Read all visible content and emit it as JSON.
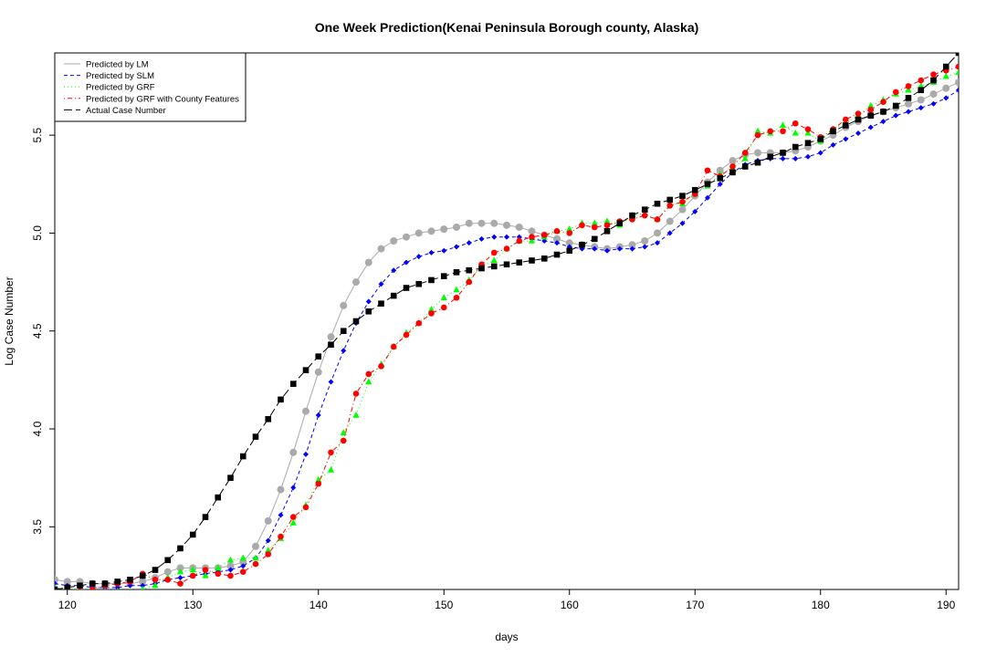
{
  "chart_data": {
    "type": "line",
    "title": "One Week Prediction(Kenai Peninsula Borough county, Alaska)",
    "xlabel": "days",
    "ylabel": "Log Case Number",
    "xlim": [
      119,
      191
    ],
    "ylim": [
      3.18,
      5.92
    ],
    "x_ticks": [
      120,
      130,
      140,
      150,
      160,
      170,
      180,
      190
    ],
    "y_ticks": [
      3.5,
      4.0,
      4.5,
      5.0,
      5.5
    ],
    "x_tick_labels": [
      "120",
      "130",
      "140",
      "150",
      "160",
      "170",
      "180",
      "190"
    ],
    "y_tick_labels": [
      "3.5",
      "4.0",
      "4.5",
      "5.0",
      "5.5"
    ],
    "legend_position": "top-left",
    "x": [
      119,
      120,
      121,
      122,
      123,
      124,
      125,
      126,
      127,
      128,
      129,
      130,
      131,
      132,
      133,
      134,
      135,
      136,
      137,
      138,
      139,
      140,
      141,
      142,
      143,
      144,
      145,
      146,
      147,
      148,
      149,
      150,
      151,
      152,
      153,
      154,
      155,
      156,
      157,
      158,
      159,
      160,
      161,
      162,
      163,
      164,
      165,
      166,
      167,
      168,
      169,
      170,
      171,
      172,
      173,
      174,
      175,
      176,
      177,
      178,
      179,
      180,
      181,
      182,
      183,
      184,
      185,
      186,
      187,
      188,
      189,
      190,
      191
    ],
    "series": [
      {
        "name": "Predicted by LM",
        "color": "#aaaaaa",
        "line_style": "solid",
        "marker": "circle",
        "values": [
          3.23,
          3.22,
          3.22,
          3.21,
          3.21,
          3.21,
          3.21,
          3.22,
          3.24,
          3.27,
          3.29,
          3.29,
          3.29,
          3.29,
          3.3,
          3.32,
          3.4,
          3.53,
          3.69,
          3.88,
          4.09,
          4.29,
          4.47,
          4.63,
          4.75,
          4.85,
          4.92,
          4.96,
          4.98,
          5.0,
          5.01,
          5.02,
          5.03,
          5.05,
          5.05,
          5.05,
          5.04,
          5.03,
          5.01,
          4.99,
          4.97,
          4.95,
          4.94,
          4.93,
          4.92,
          4.93,
          4.94,
          4.96,
          5.0,
          5.06,
          5.12,
          5.19,
          5.26,
          5.32,
          5.37,
          5.4,
          5.41,
          5.41,
          5.41,
          5.42,
          5.44,
          5.47,
          5.5,
          5.54,
          5.57,
          5.6,
          5.62,
          5.64,
          5.66,
          5.68,
          5.71,
          5.74,
          5.77
        ]
      },
      {
        "name": "Predicted by SLM",
        "color": "#0000ff",
        "line_style": "dashed",
        "marker": "diamond",
        "values": [
          3.21,
          3.2,
          3.2,
          3.19,
          3.19,
          3.19,
          3.2,
          3.2,
          3.21,
          3.23,
          3.24,
          3.25,
          3.26,
          3.27,
          3.28,
          3.3,
          3.34,
          3.43,
          3.56,
          3.7,
          3.87,
          4.07,
          4.24,
          4.4,
          4.54,
          4.65,
          4.74,
          4.81,
          4.85,
          4.88,
          4.9,
          4.91,
          4.93,
          4.95,
          4.97,
          4.98,
          4.98,
          4.98,
          4.97,
          4.96,
          4.95,
          4.93,
          4.92,
          4.92,
          4.91,
          4.92,
          4.92,
          4.93,
          4.95,
          5.0,
          5.05,
          5.11,
          5.18,
          5.25,
          5.31,
          5.35,
          5.37,
          5.38,
          5.38,
          5.38,
          5.39,
          5.41,
          5.45,
          5.48,
          5.51,
          5.54,
          5.57,
          5.6,
          5.62,
          5.64,
          5.66,
          5.69,
          5.73
        ]
      },
      {
        "name": "Predicted by GRF",
        "color": "#00ff00",
        "line_style": "dotted",
        "marker": "triangle",
        "values": [
          3.19,
          3.18,
          3.18,
          3.18,
          3.17,
          3.17,
          3.17,
          3.18,
          3.2,
          3.24,
          3.27,
          3.28,
          3.25,
          3.29,
          3.33,
          3.34,
          3.34,
          3.38,
          3.44,
          3.52,
          3.61,
          3.74,
          3.79,
          3.98,
          4.07,
          4.24,
          4.33,
          4.42,
          4.49,
          4.54,
          4.61,
          4.67,
          4.71,
          4.76,
          4.83,
          4.86,
          4.92,
          4.96,
          4.96,
          4.98,
          5.01,
          5.02,
          5.05,
          5.05,
          5.06,
          5.04,
          5.09,
          5.1,
          5.07,
          5.15,
          5.15,
          5.2,
          5.24,
          5.3,
          5.33,
          5.38,
          5.52,
          5.51,
          5.55,
          5.51,
          5.51,
          5.47,
          5.53,
          5.56,
          5.6,
          5.65,
          5.68,
          5.71,
          5.73,
          5.75,
          5.77,
          5.8,
          5.82
        ]
      },
      {
        "name": "Predicted by GRF with County Features",
        "color": "#ff0000",
        "line_style": "dotdash",
        "marker": "circle",
        "values": [
          3.17,
          3.16,
          3.17,
          3.18,
          3.2,
          3.21,
          3.22,
          3.26,
          3.23,
          3.23,
          3.21,
          3.25,
          3.28,
          3.26,
          3.25,
          3.27,
          3.31,
          3.36,
          3.45,
          3.55,
          3.6,
          3.72,
          3.88,
          3.94,
          4.18,
          4.28,
          4.32,
          4.42,
          4.48,
          4.54,
          4.59,
          4.62,
          4.67,
          4.75,
          4.84,
          4.9,
          4.92,
          4.96,
          4.98,
          4.99,
          5.01,
          5.0,
          5.04,
          5.03,
          5.04,
          5.06,
          5.07,
          5.09,
          5.07,
          5.14,
          5.16,
          5.2,
          5.32,
          5.29,
          5.34,
          5.41,
          5.5,
          5.52,
          5.52,
          5.56,
          5.53,
          5.49,
          5.53,
          5.58,
          5.61,
          5.63,
          5.67,
          5.72,
          5.75,
          5.78,
          5.81,
          5.83,
          5.85
        ]
      },
      {
        "name": "Actual Case Number",
        "color": "#000000",
        "line_style": "longdash",
        "marker": "square",
        "values": [
          3.18,
          3.19,
          3.2,
          3.21,
          3.21,
          3.22,
          3.23,
          3.25,
          3.28,
          3.33,
          3.39,
          3.46,
          3.55,
          3.65,
          3.75,
          3.86,
          3.96,
          4.05,
          4.15,
          4.23,
          4.3,
          4.37,
          4.43,
          4.5,
          4.55,
          4.6,
          4.64,
          4.68,
          4.72,
          4.74,
          4.76,
          4.78,
          4.8,
          4.81,
          4.82,
          4.83,
          4.84,
          4.85,
          4.86,
          4.87,
          4.89,
          4.91,
          4.94,
          4.97,
          5.01,
          5.05,
          5.09,
          5.12,
          5.15,
          5.17,
          5.19,
          5.22,
          5.25,
          5.28,
          5.31,
          5.34,
          5.36,
          5.39,
          5.41,
          5.44,
          5.46,
          5.48,
          5.52,
          5.55,
          5.58,
          5.6,
          5.62,
          5.65,
          5.69,
          5.73,
          5.78,
          5.85,
          5.92
        ]
      }
    ]
  }
}
